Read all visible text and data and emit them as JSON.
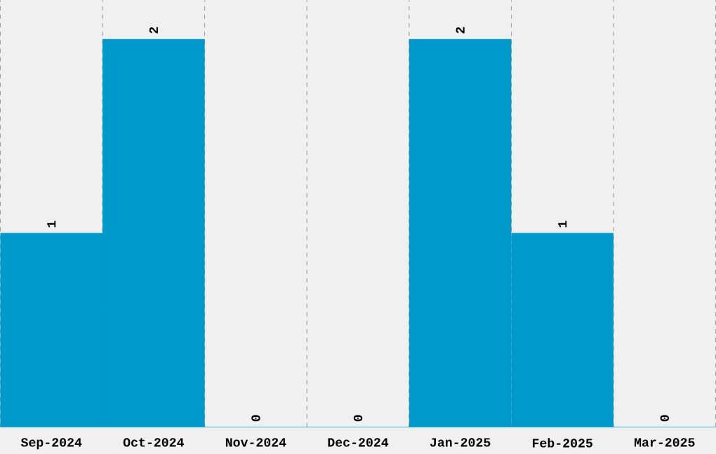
{
  "chart_data": {
    "type": "bar",
    "categories": [
      "Sep-2024",
      "Oct-2024",
      "Nov-2024",
      "Dec-2024",
      "Jan-2025",
      "Feb-2025",
      "Mar-2025"
    ],
    "values": [
      1,
      2,
      0,
      0,
      2,
      1,
      0
    ],
    "color": "#0099cc",
    "data_labels": true,
    "grid": "x",
    "tick_labels": "x"
  }
}
